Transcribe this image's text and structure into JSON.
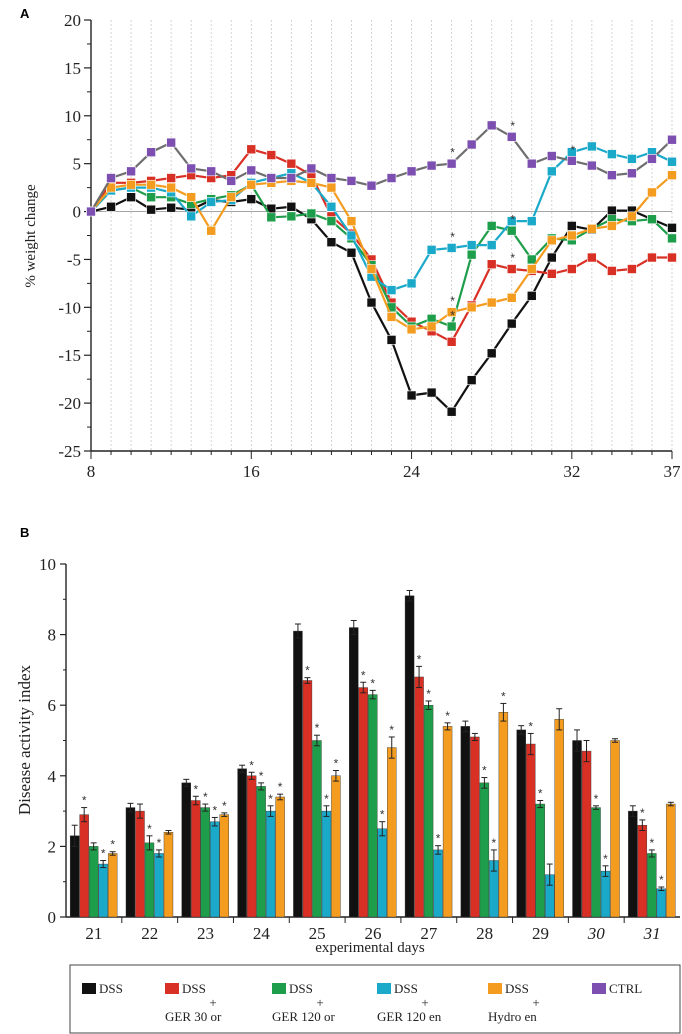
{
  "panels": {
    "a": "A",
    "b": "B"
  },
  "chart_data": [
    {
      "type": "line",
      "ylabel": "% weight change",
      "ylim": [
        -25,
        20
      ],
      "yticks": [
        20,
        15,
        10,
        5,
        0,
        -5,
        -10,
        -15,
        -20,
        -25
      ],
      "xlim": [
        8,
        37
      ],
      "xticks": [
        8,
        16,
        24,
        32,
        37
      ],
      "x": [
        8,
        9,
        10,
        11,
        12,
        13,
        14,
        15,
        16,
        17,
        18,
        19,
        20,
        21,
        22,
        23,
        24,
        25,
        26,
        27,
        28,
        29,
        30,
        31,
        32,
        33,
        34,
        35,
        36,
        37
      ],
      "series": [
        {
          "name": "DSS",
          "color": "#111111",
          "values": [
            0,
            0.5,
            1.5,
            0.2,
            0.4,
            0.2,
            1.2,
            1,
            1.3,
            0.3,
            0.5,
            -0.8,
            -3.2,
            -4.3,
            -9.5,
            -13.4,
            -19.2,
            -18.9,
            -20.9,
            -17.6,
            -14.8,
            -11.7,
            -8.8,
            -4.8,
            -1.5,
            -1.9,
            0.1,
            0.1,
            -0.8,
            -1.7
          ]
        },
        {
          "name": "DSS + GER 30 or",
          "color": "#d93025",
          "values": [
            0,
            3,
            3,
            3.2,
            3.5,
            3.8,
            3.5,
            3.8,
            6.5,
            5.9,
            5,
            3.8,
            -0.5,
            -2.3,
            -5,
            -9.5,
            -11.5,
            -12.5,
            -13.6,
            -9.8,
            -5.5,
            -6,
            -6.2,
            -6.5,
            -6,
            -4.8,
            -6.2,
            -6,
            -4.8,
            -4.8
          ]
        },
        {
          "name": "DSS + GER 120 or",
          "color": "#1e9e4a",
          "values": [
            0,
            2.2,
            2.5,
            1.5,
            1.5,
            0.8,
            1.3,
            1.7,
            2.8,
            -0.6,
            -0.5,
            -0.2,
            -1,
            -2.8,
            -5.6,
            -10,
            -12,
            -11.2,
            -12,
            -4.5,
            -1.5,
            -2,
            -5,
            -2.8,
            -3,
            -1.8,
            -0.8,
            -1,
            -0.8,
            -2.8
          ]
        },
        {
          "name": "DSS + GER 120 en",
          "color": "#1aa9c9",
          "values": [
            0,
            2.2,
            2.5,
            2.5,
            2,
            -0.5,
            1,
            1.2,
            3,
            3.5,
            4,
            3,
            0.5,
            -2.5,
            -6.8,
            -8.2,
            -7.5,
            -4,
            -3.8,
            -3.5,
            -3.5,
            -1,
            -1,
            4.2,
            6.2,
            6.8,
            6,
            5.5,
            6.2,
            5.2
          ]
        },
        {
          "name": "DSS + Hydro en",
          "color": "#f39c1f",
          "values": [
            0,
            2.5,
            2.8,
            2.8,
            2.5,
            1.5,
            -2,
            1.5,
            2.8,
            3,
            3.2,
            3,
            2.5,
            -1,
            -6,
            -11,
            -12.3,
            -12,
            -10.5,
            -10,
            -9.5,
            -9,
            -6,
            -3,
            -2.5,
            -1.8,
            -1.5,
            -0.5,
            2,
            3.8
          ]
        },
        {
          "name": "CTRL",
          "color": "#7d4fb0",
          "values": [
            0,
            3.5,
            4.2,
            6.2,
            7.2,
            4.5,
            4.2,
            3.2,
            4.3,
            3.5,
            3.5,
            4.5,
            3.5,
            3.2,
            2.7,
            3.5,
            4.2,
            4.8,
            5,
            7,
            9,
            7.8,
            5,
            5.8,
            5.3,
            4.8,
            3.8,
            4,
            5.5,
            7.5
          ]
        }
      ],
      "annotations": [
        {
          "series": "CTRL",
          "x": 26,
          "text": "*"
        },
        {
          "series": "CTRL",
          "x": 29,
          "text": "*"
        },
        {
          "series": "CTRL",
          "x": 32,
          "text": "*"
        },
        {
          "series": "DSS + GER 120 en",
          "x": 26,
          "text": "*"
        },
        {
          "series": "DSS + GER 120 or",
          "x": 26,
          "text": "*"
        },
        {
          "series": "DSS + Hydro en",
          "x": 26,
          "text": "*"
        },
        {
          "series": "DSS + GER 120 or",
          "x": 29,
          "text": "*"
        },
        {
          "series": "DSS + GER 30 or",
          "x": 29,
          "text": "*"
        }
      ]
    },
    {
      "type": "bar",
      "ylabel": "Disease activity index",
      "xlabel": "experimental days",
      "ylim": [
        0,
        10
      ],
      "yticks": [
        0,
        2,
        4,
        6,
        8,
        10
      ],
      "categories": [
        "21",
        "22",
        "23",
        "24",
        "25",
        "26",
        "27",
        "28",
        "29",
        "30",
        "31"
      ],
      "italic_categories": [
        "30",
        "31"
      ],
      "series": [
        {
          "name": "DSS",
          "color": "#111111",
          "values": [
            2.3,
            3.1,
            3.8,
            4.2,
            8.1,
            8.2,
            9.1,
            5.4,
            5.3,
            5.0,
            3.0
          ],
          "errors": [
            0.3,
            0.12,
            0.1,
            0.1,
            0.2,
            0.2,
            0.15,
            0.15,
            0.12,
            0.3,
            0.15
          ]
        },
        {
          "name": "DSS + GER 30 or",
          "color": "#d93025",
          "values": [
            2.9,
            3.0,
            3.3,
            4.0,
            6.7,
            6.5,
            6.8,
            5.1,
            4.9,
            4.7,
            2.6
          ],
          "errors": [
            0.2,
            0.2,
            0.12,
            0.1,
            0.08,
            0.15,
            0.3,
            0.1,
            0.3,
            0.3,
            0.15
          ],
          "stars": [
            true,
            false,
            true,
            true,
            true,
            true,
            true,
            false,
            true,
            false,
            true
          ]
        },
        {
          "name": "DSS + GER 120 or",
          "color": "#1e9e4a",
          "values": [
            2.0,
            2.1,
            3.1,
            3.7,
            5.0,
            6.3,
            6.0,
            3.8,
            3.2,
            3.1,
            1.8
          ],
          "errors": [
            0.1,
            0.2,
            0.1,
            0.1,
            0.15,
            0.12,
            0.12,
            0.15,
            0.1,
            0.05,
            0.1
          ],
          "stars": [
            false,
            true,
            true,
            true,
            true,
            true,
            true,
            true,
            true,
            true,
            true
          ]
        },
        {
          "name": "DSS + GER 120 en",
          "color": "#1aa9c9",
          "values": [
            1.5,
            1.8,
            2.7,
            3.0,
            3.0,
            2.5,
            1.9,
            1.6,
            1.2,
            1.3,
            0.8
          ],
          "errors": [
            0.1,
            0.1,
            0.12,
            0.15,
            0.15,
            0.2,
            0.12,
            0.3,
            0.3,
            0.15,
            0.05
          ],
          "stars": [
            true,
            true,
            true,
            true,
            true,
            true,
            true,
            true,
            false,
            true,
            true
          ]
        },
        {
          "name": "DSS + Hydro en",
          "color": "#f39c1f",
          "values": [
            1.8,
            2.4,
            2.9,
            3.4,
            4.0,
            4.8,
            5.4,
            5.8,
            5.6,
            5.0,
            3.2
          ],
          "errors": [
            0.05,
            0.05,
            0.05,
            0.08,
            0.15,
            0.3,
            0.1,
            0.25,
            0.3,
            0.05,
            0.05
          ],
          "stars": [
            true,
            false,
            true,
            true,
            true,
            true,
            true,
            true,
            false,
            false,
            false
          ]
        }
      ]
    }
  ],
  "legend": {
    "items": [
      {
        "lines": [
          "DSS"
        ],
        "color": "#111111"
      },
      {
        "lines": [
          "DSS",
          "+",
          "GER 30 or"
        ],
        "color": "#d93025"
      },
      {
        "lines": [
          "DSS",
          "+",
          "GER 120 or"
        ],
        "color": "#1e9e4a"
      },
      {
        "lines": [
          "DSS",
          "+",
          "GER 120 en"
        ],
        "color": "#1aa9c9"
      },
      {
        "lines": [
          "DSS",
          "+",
          "Hydro en"
        ],
        "color": "#f39c1f"
      },
      {
        "lines": [
          "CTRL"
        ],
        "color": "#7d4fb0"
      }
    ]
  }
}
